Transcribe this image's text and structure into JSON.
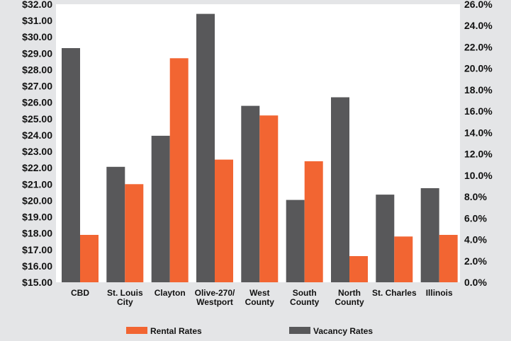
{
  "chart_data": {
    "type": "bar",
    "categories": [
      [
        "CBD"
      ],
      [
        "St. Louis",
        "City"
      ],
      [
        "Clayton"
      ],
      [
        "Olive-270/",
        "Westport"
      ],
      [
        "West",
        "County"
      ],
      [
        "South",
        "County"
      ],
      [
        "North",
        "County"
      ],
      [
        "St. Charles"
      ],
      [
        "Illinois"
      ]
    ],
    "series": [
      {
        "name": "Vacancy Rates",
        "axis": "right",
        "color": "#58585a",
        "values": [
          21.9,
          10.8,
          13.7,
          25.1,
          16.5,
          7.7,
          17.3,
          8.2,
          8.8
        ]
      },
      {
        "name": "Rental Rates",
        "axis": "left",
        "color": "#f26532",
        "values": [
          17.9,
          21.0,
          28.7,
          22.5,
          25.2,
          22.4,
          16.6,
          17.8,
          17.9
        ]
      }
    ],
    "left_axis": {
      "ylim": [
        15,
        32
      ],
      "ticks": [
        "$15.00",
        "$16.00",
        "$17.00",
        "$18.00",
        "$19.00",
        "$20.00",
        "$21.00",
        "$22.00",
        "$23.00",
        "$24.00",
        "$25.00",
        "$26.00",
        "$27.00",
        "$28.00",
        "$29.00",
        "$30.00",
        "$31.00",
        "$32.00"
      ]
    },
    "right_axis": {
      "ylim": [
        0,
        26
      ],
      "ticks": [
        "0.0%",
        "2.0%",
        "4.0%",
        "6.0%",
        "8.0%",
        "10.0%",
        "12.0%",
        "14.0%",
        "16.0%",
        "18.0%",
        "20.0%",
        "22.0%",
        "24.0%",
        "26.0%"
      ]
    },
    "legend": {
      "placement": "bottom",
      "order": [
        "Rental Rates",
        "Vacancy Rates"
      ]
    },
    "grid": false,
    "background": "#ffffff",
    "page_background": "#e4e5e7"
  }
}
